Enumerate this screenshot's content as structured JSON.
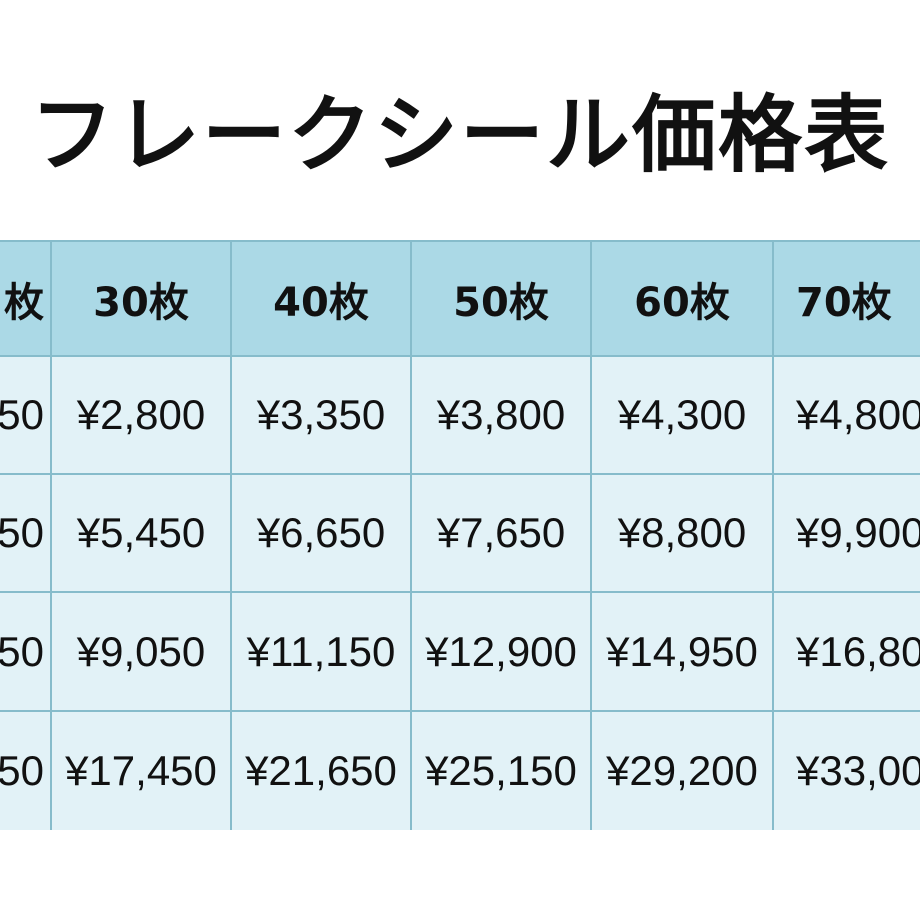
{
  "title": "フレークシール価格表",
  "table": {
    "header": [
      "枚",
      "30枚",
      "40枚",
      "50枚",
      "60枚",
      "70枚"
    ],
    "rows": [
      [
        "50",
        "¥2,800",
        "¥3,350",
        "¥3,800",
        "¥4,300",
        "¥4,800"
      ],
      [
        "50",
        "¥5,450",
        "¥6,650",
        "¥7,650",
        "¥8,800",
        "¥9,900"
      ],
      [
        "50",
        "¥9,050",
        "¥11,150",
        "¥12,900",
        "¥14,950",
        "¥16,80"
      ],
      [
        "50",
        "¥17,450",
        "¥21,650",
        "¥25,150",
        "¥29,200",
        "¥33,00"
      ]
    ]
  }
}
